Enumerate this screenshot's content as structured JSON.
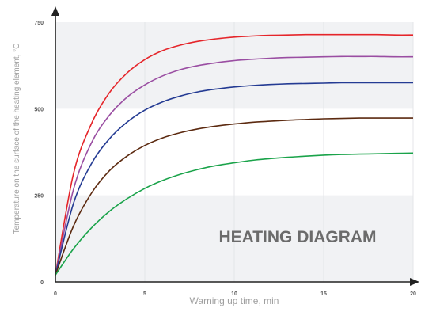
{
  "chart_data": {
    "type": "line",
    "title": "",
    "xlabel": "Warning up time, min",
    "ylabel": "Temperature on the surface of the heating element, °C",
    "annotation": "HEATING DIAGRAM",
    "xlim": [
      0,
      20
    ],
    "ylim": [
      0,
      750
    ],
    "x_ticks": [
      "0",
      "5",
      "10",
      "15",
      "20"
    ],
    "y_ticks": [
      "0",
      "250",
      "500",
      "750"
    ],
    "grid": "vertical",
    "bands": [
      {
        "from": 0,
        "to": 250,
        "color": "#f1f2f4"
      },
      {
        "from": 500,
        "to": 750,
        "color": "#f1f2f4"
      }
    ],
    "x": [
      0,
      1,
      2,
      3,
      4,
      5,
      6,
      7,
      8,
      9,
      10,
      11,
      12,
      13,
      14,
      15,
      16,
      17,
      18,
      19,
      20
    ],
    "series": [
      {
        "color": "#e5252a",
        "values": [
          20,
          310,
          455,
          545,
          603,
          642,
          668,
          684,
          695,
          702,
          707,
          710,
          712,
          713,
          714,
          714,
          714,
          714,
          714,
          713,
          713
        ]
      },
      {
        "color": "#9a4ea2",
        "values": [
          20,
          265,
          400,
          480,
          533,
          569,
          595,
          613,
          625,
          633,
          639,
          643,
          646,
          648,
          649,
          650,
          651,
          651,
          651,
          650,
          650
        ]
      },
      {
        "color": "#243b93",
        "values": [
          20,
          225,
          340,
          412,
          461,
          496,
          520,
          537,
          549,
          557,
          563,
          567,
          570,
          572,
          573,
          574,
          575,
          575,
          575,
          575,
          575
        ]
      },
      {
        "color": "#5c2a10",
        "values": [
          20,
          160,
          255,
          320,
          363,
          394,
          416,
          431,
          442,
          450,
          456,
          461,
          464,
          467,
          469,
          471,
          472,
          473,
          473,
          473,
          473
        ]
      },
      {
        "color": "#1aa34a",
        "values": [
          20,
          95,
          155,
          203,
          240,
          270,
          293,
          311,
          325,
          336,
          344,
          351,
          356,
          360,
          363,
          366,
          368,
          369,
          370,
          371,
          372
        ]
      }
    ]
  }
}
